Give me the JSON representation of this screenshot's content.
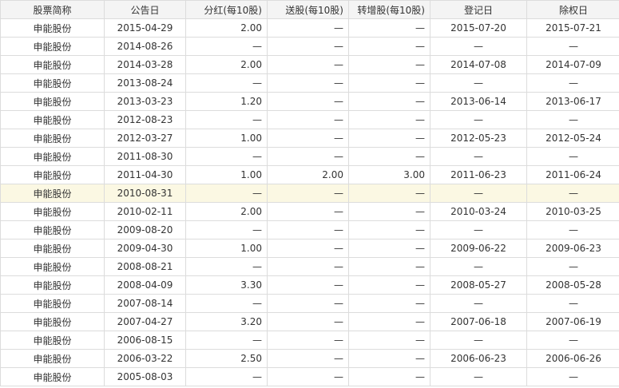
{
  "headers": [
    "股票简称",
    "公告日",
    "分红(每10股)",
    "送股(每10股)",
    "转增股(每10股)",
    "登记日",
    "除权日"
  ],
  "highlight_row": 9,
  "rows": [
    [
      "申能股份",
      "2015-04-29",
      "2.00",
      "—",
      "—",
      "2015-07-20",
      "2015-07-21"
    ],
    [
      "申能股份",
      "2014-08-26",
      "—",
      "—",
      "—",
      "—",
      "—"
    ],
    [
      "申能股份",
      "2014-03-28",
      "2.00",
      "—",
      "—",
      "2014-07-08",
      "2014-07-09"
    ],
    [
      "申能股份",
      "2013-08-24",
      "—",
      "—",
      "—",
      "—",
      "—"
    ],
    [
      "申能股份",
      "2013-03-23",
      "1.20",
      "—",
      "—",
      "2013-06-14",
      "2013-06-17"
    ],
    [
      "申能股份",
      "2012-08-23",
      "—",
      "—",
      "—",
      "—",
      "—"
    ],
    [
      "申能股份",
      "2012-03-27",
      "1.00",
      "—",
      "—",
      "2012-05-23",
      "2012-05-24"
    ],
    [
      "申能股份",
      "2011-08-30",
      "—",
      "—",
      "—",
      "—",
      "—"
    ],
    [
      "申能股份",
      "2011-04-30",
      "1.00",
      "2.00",
      "3.00",
      "2011-06-23",
      "2011-06-24"
    ],
    [
      "申能股份",
      "2010-08-31",
      "—",
      "—",
      "—",
      "—",
      "—"
    ],
    [
      "申能股份",
      "2010-02-11",
      "2.00",
      "—",
      "—",
      "2010-03-24",
      "2010-03-25"
    ],
    [
      "申能股份",
      "2009-08-20",
      "—",
      "—",
      "—",
      "—",
      "—"
    ],
    [
      "申能股份",
      "2009-04-30",
      "1.00",
      "—",
      "—",
      "2009-06-22",
      "2009-06-23"
    ],
    [
      "申能股份",
      "2008-08-21",
      "—",
      "—",
      "—",
      "—",
      "—"
    ],
    [
      "申能股份",
      "2008-04-09",
      "3.30",
      "—",
      "—",
      "2008-05-27",
      "2008-05-28"
    ],
    [
      "申能股份",
      "2007-08-14",
      "—",
      "—",
      "—",
      "—",
      "—"
    ],
    [
      "申能股份",
      "2007-04-27",
      "3.20",
      "—",
      "—",
      "2007-06-18",
      "2007-06-19"
    ],
    [
      "申能股份",
      "2006-08-15",
      "—",
      "—",
      "—",
      "—",
      "—"
    ],
    [
      "申能股份",
      "2006-03-22",
      "2.50",
      "—",
      "—",
      "2006-06-23",
      "2006-06-26"
    ],
    [
      "申能股份",
      "2005-08-03",
      "—",
      "—",
      "—",
      "—",
      "—"
    ]
  ]
}
